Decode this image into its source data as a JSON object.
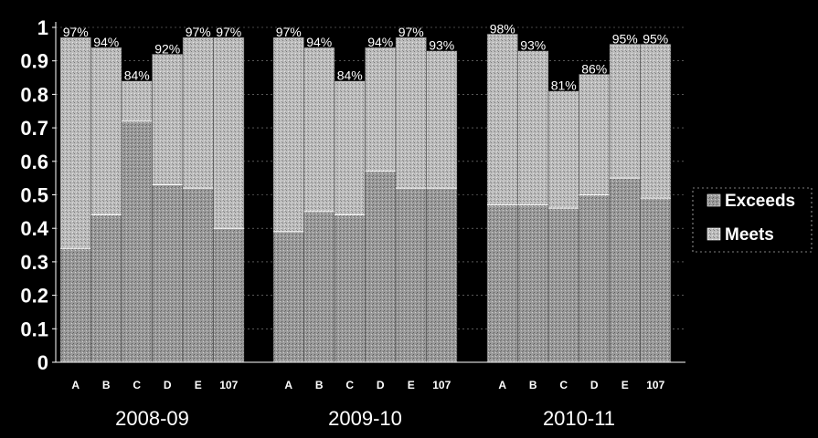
{
  "colors": {
    "background": "#000000",
    "exceeds": "#9a9a9a",
    "meets": "#bdbdbd",
    "text": "#ffffff",
    "label_on_bar": "#111111",
    "grid": "#ffffff"
  },
  "chart_data": {
    "type": "bar",
    "stacked": true,
    "title": "",
    "xlabel": "",
    "ylabel": "",
    "ylim": [
      0,
      1
    ],
    "yticks": [
      "0",
      "0.1",
      "0.2",
      "0.3",
      "0.4",
      "0.5",
      "0.6",
      "0.7",
      "0.8",
      "0.9",
      "1"
    ],
    "grid": "horizontal dashed",
    "legend_position": "right",
    "legend": [
      "Exceeds",
      "Meets"
    ],
    "groups": [
      {
        "name": "2008-09",
        "categories": [
          "A",
          "B",
          "C",
          "D",
          "E",
          "107"
        ],
        "exceeds": [
          0.34,
          0.44,
          0.72,
          0.53,
          0.52,
          0.4
        ],
        "meets": [
          0.63,
          0.5,
          0.12,
          0.39,
          0.45,
          0.57
        ],
        "total_labels": [
          "97%",
          "94%",
          "84%",
          "92%",
          "97%",
          "97%"
        ]
      },
      {
        "name": "2009-10",
        "categories": [
          "A",
          "B",
          "C",
          "D",
          "E",
          "107"
        ],
        "exceeds": [
          0.39,
          0.45,
          0.44,
          0.57,
          0.52,
          0.52
        ],
        "meets": [
          0.58,
          0.49,
          0.4,
          0.37,
          0.45,
          0.41
        ],
        "total_labels": [
          "97%",
          "94%",
          "84%",
          "94%",
          "97%",
          "93%"
        ]
      },
      {
        "name": "2010-11",
        "categories": [
          "A",
          "B",
          "C",
          "D",
          "E",
          "107"
        ],
        "exceeds": [
          0.47,
          0.47,
          0.46,
          0.5,
          0.55,
          0.49
        ],
        "meets": [
          0.51,
          0.46,
          0.35,
          0.36,
          0.4,
          0.46
        ],
        "total_labels": [
          "98%",
          "93%",
          "81%",
          "86%",
          "95%",
          "95%"
        ]
      }
    ]
  }
}
